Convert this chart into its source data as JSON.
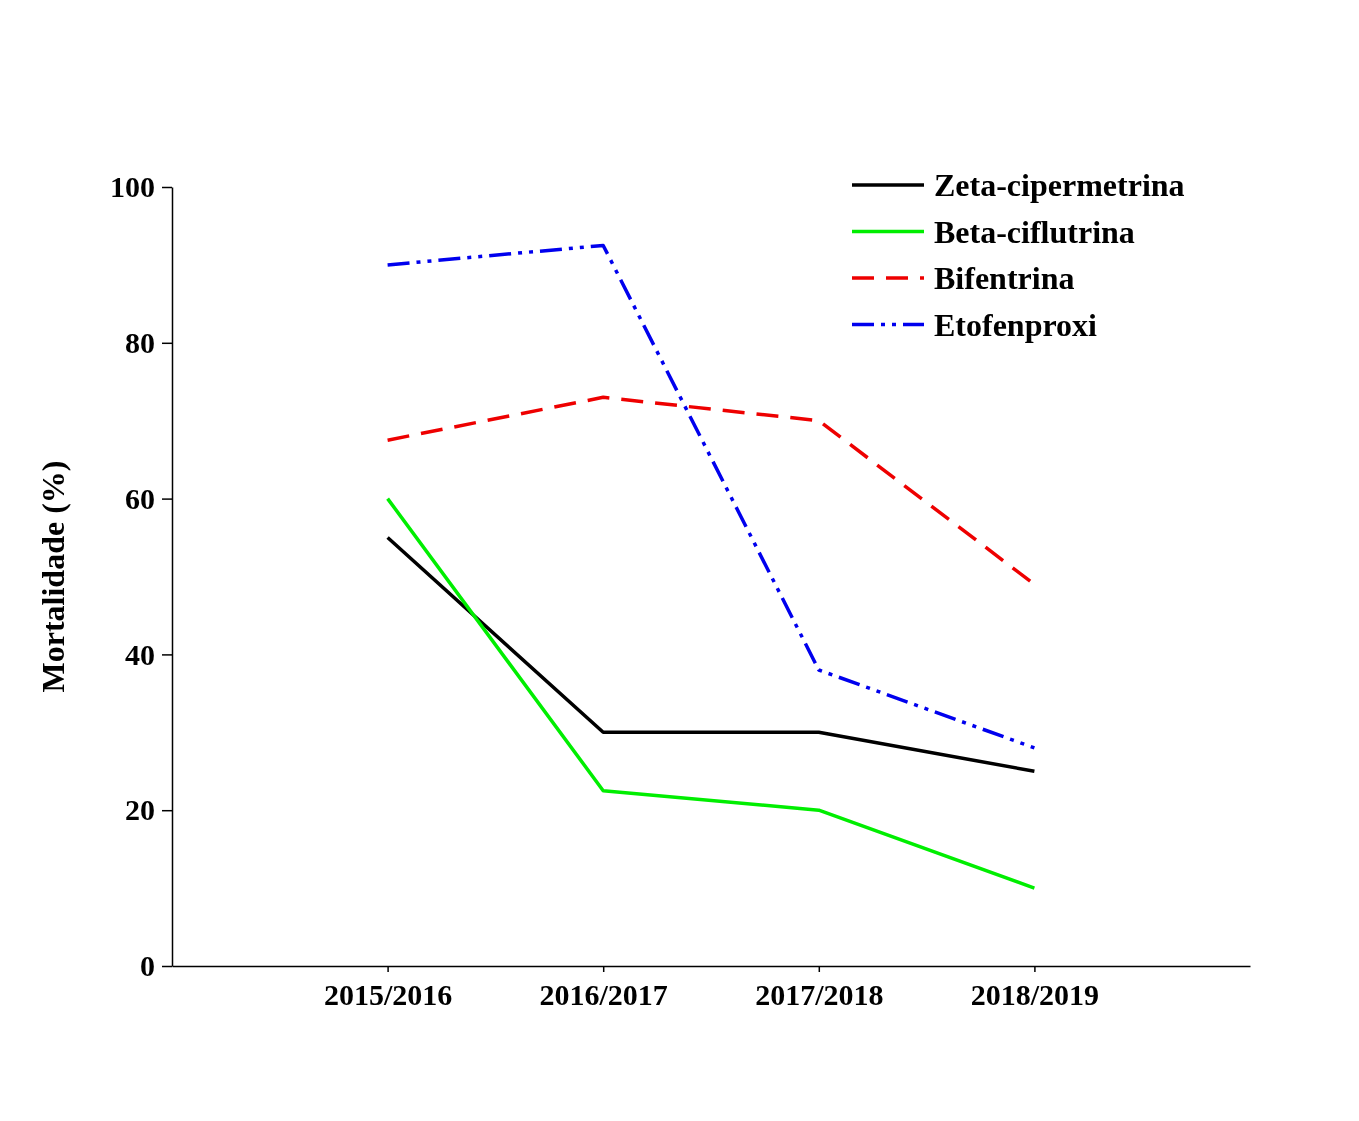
{
  "chart_data": {
    "type": "line",
    "ylabel": "Mortalidade (%)",
    "categories": [
      "2015/2016",
      "2016/2017",
      "2017/2018",
      "2018/2019"
    ],
    "series": [
      {
        "name": "Zeta-cipermetrina",
        "color": "#000000",
        "line_style": "solid",
        "values": [
          55,
          30,
          30,
          25
        ]
      },
      {
        "name": "Beta-ciflutrina",
        "color": "#00ee00",
        "line_style": "solid",
        "values": [
          60,
          22.5,
          20,
          10
        ]
      },
      {
        "name": "Bifentrina",
        "color": "#ee0000",
        "line_style": "dashed",
        "values": [
          67.5,
          73,
          70,
          49
        ]
      },
      {
        "name": "Etofenproxi",
        "color": "#0000ee",
        "line_style": "dashdotdot",
        "values": [
          90,
          92.5,
          38,
          28
        ]
      }
    ],
    "ylim": [
      0,
      100
    ],
    "yticks": [
      0,
      20,
      40,
      60,
      80,
      100
    ],
    "grid": false,
    "legend": "top right",
    "marker": "none"
  }
}
